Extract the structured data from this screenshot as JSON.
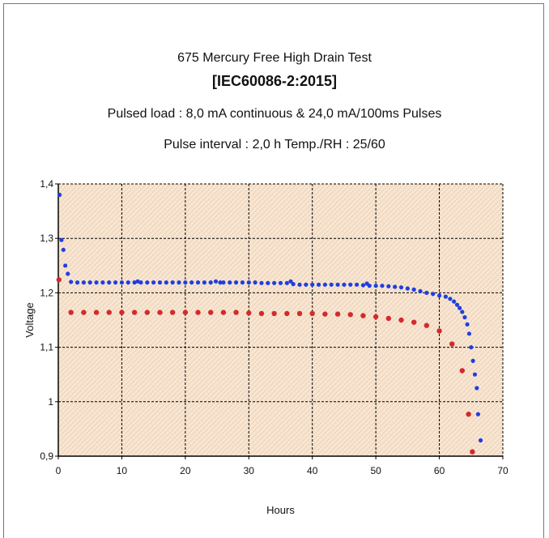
{
  "chart_data": {
    "type": "scatter",
    "title": "675 Mercury Free High Drain Test",
    "subtitle": "[IEC60086-2:2015]",
    "notes": [
      "Pulsed load : 8,0 mA  continuous  &  24,0 mA/100ms  Pulses",
      "Pulse interval : 2,0 h     Temp./RH   : 25/60"
    ],
    "xlabel": "Hours",
    "ylabel": "Voltage",
    "xlim": [
      0,
      70
    ],
    "ylim": [
      0.9,
      1.4
    ],
    "x_ticks": [
      "0",
      "10",
      "20",
      "30",
      "40",
      "50",
      "60",
      "70"
    ],
    "y_ticks": [
      "0,9",
      "1",
      "1,1",
      "1,2",
      "1,3",
      "1,4"
    ],
    "grid": true,
    "legend": "none",
    "plot_background": "#f7e6d4",
    "series": [
      {
        "color": "#1f3fe0",
        "points": [
          [
            0.2,
            1.38
          ],
          [
            0.5,
            1.297
          ],
          [
            0.8,
            1.279
          ],
          [
            1.1,
            1.25
          ],
          [
            1.5,
            1.235
          ],
          [
            2,
            1.22
          ],
          [
            3,
            1.219
          ],
          [
            4,
            1.219
          ],
          [
            5,
            1.219
          ],
          [
            6,
            1.219
          ],
          [
            7,
            1.219
          ],
          [
            8,
            1.219
          ],
          [
            9,
            1.219
          ],
          [
            10,
            1.219
          ],
          [
            11,
            1.219
          ],
          [
            12,
            1.219
          ],
          [
            12.5,
            1.221
          ],
          [
            13,
            1.219
          ],
          [
            14,
            1.219
          ],
          [
            15,
            1.219
          ],
          [
            16,
            1.219
          ],
          [
            17,
            1.219
          ],
          [
            18,
            1.219
          ],
          [
            19,
            1.219
          ],
          [
            20,
            1.219
          ],
          [
            21,
            1.219
          ],
          [
            22,
            1.219
          ],
          [
            23,
            1.219
          ],
          [
            24,
            1.219
          ],
          [
            24.8,
            1.221
          ],
          [
            25.5,
            1.219
          ],
          [
            26,
            1.219
          ],
          [
            27,
            1.219
          ],
          [
            28,
            1.219
          ],
          [
            29,
            1.219
          ],
          [
            30,
            1.219
          ],
          [
            31,
            1.219
          ],
          [
            32,
            1.218
          ],
          [
            33,
            1.218
          ],
          [
            34,
            1.218
          ],
          [
            35,
            1.218
          ],
          [
            36,
            1.218
          ],
          [
            36.6,
            1.221
          ],
          [
            37,
            1.216
          ],
          [
            38,
            1.215
          ],
          [
            39,
            1.215
          ],
          [
            40,
            1.215
          ],
          [
            41,
            1.215
          ],
          [
            42,
            1.215
          ],
          [
            43,
            1.215
          ],
          [
            44,
            1.215
          ],
          [
            45,
            1.215
          ],
          [
            46,
            1.215
          ],
          [
            47,
            1.215
          ],
          [
            48,
            1.214
          ],
          [
            48.6,
            1.217
          ],
          [
            49,
            1.213
          ],
          [
            50,
            1.213
          ],
          [
            51,
            1.213
          ],
          [
            52,
            1.212
          ],
          [
            53,
            1.211
          ],
          [
            54,
            1.21
          ],
          [
            55,
            1.208
          ],
          [
            56,
            1.206
          ],
          [
            57,
            1.203
          ],
          [
            58,
            1.2
          ],
          [
            59,
            1.198
          ],
          [
            60,
            1.195
          ],
          [
            61,
            1.193
          ],
          [
            61.7,
            1.189
          ],
          [
            62.3,
            1.184
          ],
          [
            62.8,
            1.178
          ],
          [
            63.2,
            1.172
          ],
          [
            63.6,
            1.165
          ],
          [
            64,
            1.155
          ],
          [
            64.4,
            1.142
          ],
          [
            64.7,
            1.125
          ],
          [
            65,
            1.1
          ],
          [
            65.3,
            1.075
          ],
          [
            65.6,
            1.05
          ],
          [
            65.9,
            1.025
          ],
          [
            66.1,
            0.977
          ],
          [
            66.5,
            0.929
          ]
        ]
      },
      {
        "color": "#d42a2a",
        "points": [
          [
            0.1,
            1.224
          ],
          [
            2,
            1.164
          ],
          [
            4,
            1.164
          ],
          [
            6,
            1.164
          ],
          [
            8,
            1.164
          ],
          [
            10,
            1.164
          ],
          [
            12,
            1.164
          ],
          [
            14,
            1.164
          ],
          [
            16,
            1.164
          ],
          [
            18,
            1.164
          ],
          [
            20,
            1.164
          ],
          [
            22,
            1.164
          ],
          [
            24,
            1.164
          ],
          [
            26,
            1.164
          ],
          [
            28,
            1.164
          ],
          [
            30,
            1.163
          ],
          [
            32,
            1.162
          ],
          [
            34,
            1.162
          ],
          [
            36,
            1.162
          ],
          [
            38,
            1.162
          ],
          [
            40,
            1.162
          ],
          [
            42,
            1.161
          ],
          [
            44,
            1.161
          ],
          [
            46,
            1.16
          ],
          [
            48,
            1.158
          ],
          [
            50,
            1.156
          ],
          [
            52,
            1.153
          ],
          [
            54,
            1.15
          ],
          [
            56,
            1.146
          ],
          [
            58,
            1.14
          ],
          [
            60,
            1.13
          ],
          [
            62,
            1.106
          ],
          [
            63.6,
            1.057
          ],
          [
            64.6,
            0.977
          ],
          [
            65.2,
            0.908
          ]
        ]
      }
    ]
  }
}
